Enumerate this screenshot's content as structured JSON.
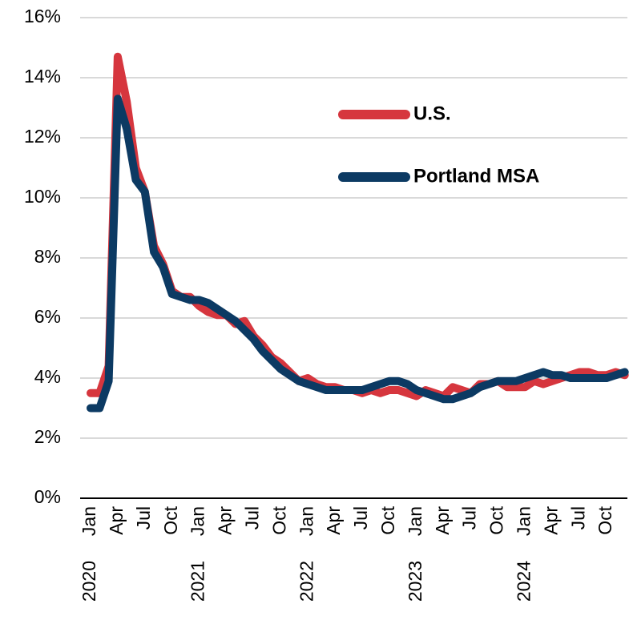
{
  "chart_data": {
    "type": "line",
    "categories": [
      "Jan",
      null,
      null,
      "Apr",
      null,
      null,
      "Jul",
      null,
      null,
      "Oct",
      null,
      null,
      "Jan",
      null,
      null,
      "Apr",
      null,
      null,
      "Jul",
      null,
      null,
      "Oct",
      null,
      null,
      "Jan",
      null,
      null,
      "Apr",
      null,
      null,
      "Jul",
      null,
      null,
      "Oct",
      null,
      null,
      "Jan",
      null,
      null,
      "Apr",
      null,
      null,
      "Jul",
      null,
      null,
      "Oct",
      null,
      null,
      "Jan",
      null,
      null,
      "Apr",
      null,
      null,
      "Jul",
      null,
      null,
      "Oct",
      null,
      null
    ],
    "years": [
      "2020",
      "2021",
      "2022",
      "2023",
      "2024"
    ],
    "series": [
      {
        "name": "U.S.",
        "color": "#d6363e",
        "values": [
          3.5,
          3.5,
          4.4,
          14.7,
          13.2,
          11.0,
          10.2,
          8.4,
          7.8,
          6.9,
          6.7,
          6.7,
          6.4,
          6.2,
          6.1,
          6.1,
          5.8,
          5.9,
          5.4,
          5.1,
          4.7,
          4.5,
          4.2,
          3.9,
          4.0,
          3.8,
          3.7,
          3.7,
          3.6,
          3.6,
          3.5,
          3.6,
          3.5,
          3.6,
          3.6,
          3.5,
          3.4,
          3.6,
          3.5,
          3.4,
          3.7,
          3.6,
          3.5,
          3.8,
          3.8,
          3.9,
          3.7,
          3.7,
          3.7,
          3.9,
          3.8,
          3.9,
          4.0,
          4.1,
          4.2,
          4.2,
          4.1,
          4.1,
          4.2,
          4.1
        ]
      },
      {
        "name": "Portland MSA",
        "color": "#0c3a63",
        "values": [
          3.0,
          3.0,
          3.9,
          13.3,
          12.3,
          10.6,
          10.2,
          8.2,
          7.7,
          6.8,
          6.7,
          6.6,
          6.6,
          6.5,
          6.3,
          6.1,
          5.9,
          5.6,
          5.3,
          4.9,
          4.6,
          4.3,
          4.1,
          3.9,
          3.8,
          3.7,
          3.6,
          3.6,
          3.6,
          3.6,
          3.6,
          3.7,
          3.8,
          3.9,
          3.9,
          3.8,
          3.6,
          3.5,
          3.4,
          3.3,
          3.3,
          3.4,
          3.5,
          3.7,
          3.8,
          3.9,
          3.9,
          3.9,
          4.0,
          4.1,
          4.2,
          4.1,
          4.1,
          4.0,
          4.0,
          4.0,
          4.0,
          4.0,
          4.1,
          4.2
        ]
      }
    ],
    "ylim": [
      0,
      16
    ],
    "yticks": [
      {
        "value": 0,
        "label": "0%"
      },
      {
        "value": 2,
        "label": "2%"
      },
      {
        "value": 4,
        "label": "4%"
      },
      {
        "value": 6,
        "label": "6%"
      },
      {
        "value": 8,
        "label": "8%"
      },
      {
        "value": 10,
        "label": "10%"
      },
      {
        "value": 12,
        "label": "12%"
      },
      {
        "value": 14,
        "label": "14%"
      },
      {
        "value": 16,
        "label": "16%"
      }
    ],
    "grid": true,
    "legend_position": "right"
  }
}
